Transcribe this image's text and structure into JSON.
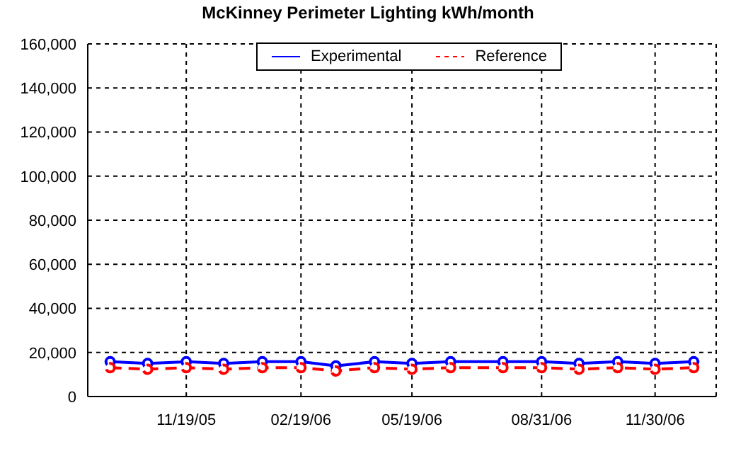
{
  "chart_data": {
    "type": "line",
    "title": "McKinney Perimeter Lighting kWh/month",
    "x": [
      "2005-09-19",
      "2005-10-19",
      "2005-11-19",
      "2005-12-19",
      "2006-01-19",
      "2006-02-19",
      "2006-03-19",
      "2006-04-19",
      "2006-05-19",
      "2006-06-19",
      "2006-07-31",
      "2006-08-31",
      "2006-09-30",
      "2006-10-31",
      "2006-11-30",
      "2006-12-31"
    ],
    "series": [
      {
        "name": "Experimental",
        "color": "#0000ff",
        "line_style": "solid",
        "values": [
          15800,
          15000,
          15800,
          15000,
          15800,
          15800,
          13900,
          15800,
          15000,
          15800,
          15800,
          15800,
          15000,
          15800,
          15000,
          15800
        ]
      },
      {
        "name": "Reference",
        "color": "#ff0000",
        "line_style": "dashed",
        "values": [
          13100,
          12400,
          13100,
          12400,
          13100,
          13100,
          11600,
          13100,
          12400,
          13100,
          13100,
          13100,
          12400,
          13100,
          12400,
          13100
        ]
      }
    ],
    "xlim": [
      "2005-09-01",
      "2007-01-18"
    ],
    "xticks": [
      {
        "value": "2005-11-19",
        "label": "11/19/05"
      },
      {
        "value": "2006-02-19",
        "label": "02/19/06"
      },
      {
        "value": "2006-05-19",
        "label": "05/19/06"
      },
      {
        "value": "2006-08-31",
        "label": "08/31/06"
      },
      {
        "value": "2006-11-30",
        "label": "11/30/06"
      }
    ],
    "ylim": [
      0,
      160000
    ],
    "yticks": [
      {
        "value": 0,
        "label": "0"
      },
      {
        "value": 20000,
        "label": "20,000"
      },
      {
        "value": 40000,
        "label": "40,000"
      },
      {
        "value": 60000,
        "label": "60,000"
      },
      {
        "value": 80000,
        "label": "80,000"
      },
      {
        "value": 100000,
        "label": "100,000"
      },
      {
        "value": 120000,
        "label": "120,000"
      },
      {
        "value": 140000,
        "label": "140,000"
      },
      {
        "value": 160000,
        "label": "160,000"
      }
    ],
    "grid": true,
    "legend": "top",
    "marker": "circle"
  }
}
